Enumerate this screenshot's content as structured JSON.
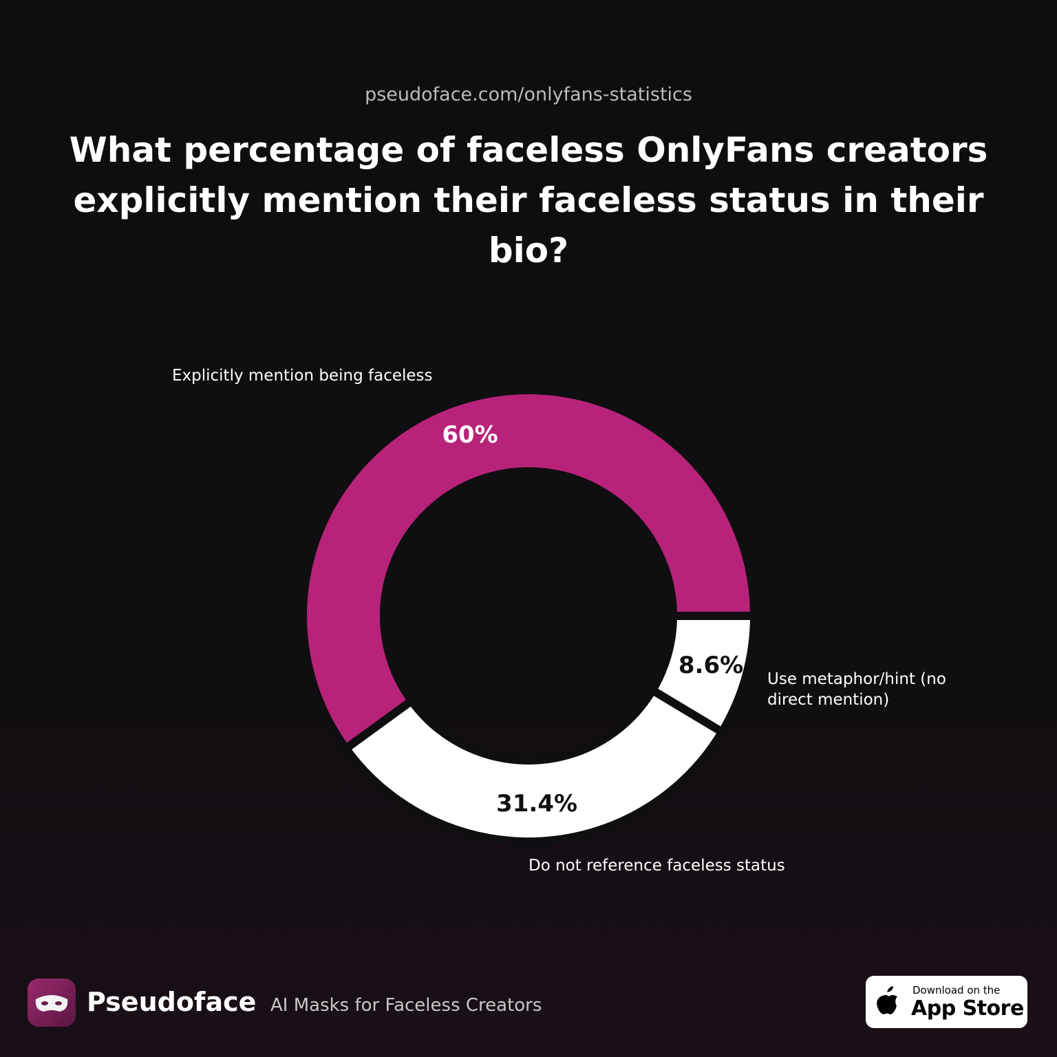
{
  "source_url": "pseudoface.com/onlyfans-statistics",
  "chart_data": {
    "type": "donut",
    "title": "What percentage of faceless OnlyFans creators explicitly mention their faceless status in their bio?",
    "categories": [
      "Explicitly mention being faceless",
      "Use metaphor/hint (no direct mention)",
      "Do not reference faceless status"
    ],
    "values": [
      60,
      8.6,
      31.4
    ],
    "value_labels": [
      "60%",
      "8.6%",
      "31.4%"
    ],
    "colors": [
      "#b8237a",
      "#ffffff",
      "#ffffff"
    ]
  },
  "brand": {
    "name": "Pseudoface",
    "tagline": "AI Masks for Faceless Creators"
  },
  "badge": {
    "line1": "Download on the",
    "line2": "App Store"
  }
}
